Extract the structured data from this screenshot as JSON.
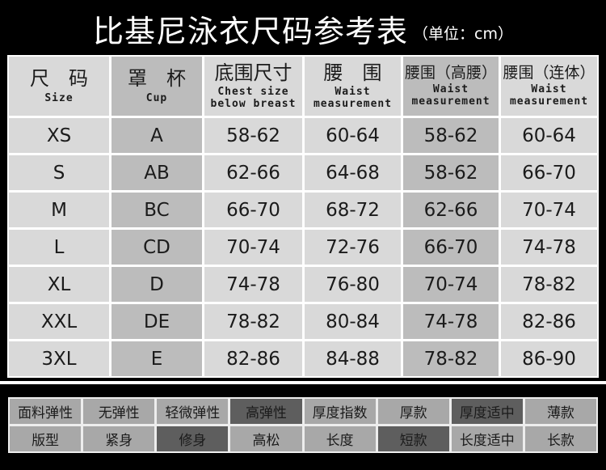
{
  "title": {
    "text": "比基尼泳衣尺码参考表",
    "unit": "（单位：cm）"
  },
  "chart_data": {
    "type": "table",
    "title": "比基尼泳衣尺码参考表",
    "unit": "cm",
    "columns": [
      {
        "zh": "尺　码",
        "en": "Size"
      },
      {
        "zh": "罩　杯",
        "en": "Cup"
      },
      {
        "zh": "底围尺寸",
        "en": "Chest size below breast"
      },
      {
        "zh": "腰　围",
        "en": "Waist measurement"
      },
      {
        "zh": "腰围（高腰）",
        "en": "Waist measurement"
      },
      {
        "zh": "腰围（连体）",
        "en": "Waist measurement"
      }
    ],
    "rows": [
      [
        "XS",
        "A",
        "58-62",
        "60-64",
        "58-62",
        "60-64"
      ],
      [
        "S",
        "AB",
        "62-66",
        "64-68",
        "58-62",
        "66-70"
      ],
      [
        "M",
        "BC",
        "66-70",
        "68-72",
        "62-66",
        "70-74"
      ],
      [
        "L",
        "CD",
        "70-74",
        "72-76",
        "66-70",
        "74-78"
      ],
      [
        "XL",
        "D",
        "74-78",
        "76-80",
        "70-74",
        "78-82"
      ],
      [
        "XXL",
        "DE",
        "78-82",
        "80-84",
        "74-78",
        "82-86"
      ],
      [
        "3XL",
        "E",
        "82-86",
        "84-88",
        "78-82",
        "86-90"
      ]
    ],
    "dark_columns": [
      1,
      4
    ]
  },
  "attributes": {
    "rows": [
      [
        {
          "label": "面料弹性",
          "highlight": false
        },
        {
          "label": "无弹性",
          "highlight": false
        },
        {
          "label": "轻微弹性",
          "highlight": false
        },
        {
          "label": "高弹性",
          "highlight": true
        },
        {
          "label": "厚度指数",
          "highlight": false
        },
        {
          "label": "厚款",
          "highlight": false
        },
        {
          "label": "厚度适中",
          "highlight": true
        },
        {
          "label": "薄款",
          "highlight": false
        }
      ],
      [
        {
          "label": "版型",
          "highlight": false
        },
        {
          "label": "紧身",
          "highlight": false
        },
        {
          "label": "修身",
          "highlight": true
        },
        {
          "label": "高松",
          "highlight": false
        },
        {
          "label": "长度",
          "highlight": false
        },
        {
          "label": "短款",
          "highlight": true
        },
        {
          "label": "长度适中",
          "highlight": false
        },
        {
          "label": "长款",
          "highlight": false
        }
      ]
    ]
  },
  "colors": {
    "background": "#000000",
    "cell_light": "#d9d9d9",
    "cell_dark": "#bcbcbc",
    "attr_cell": "#a8a8a8",
    "attr_highlight": "#5e5e5e",
    "text": "#1b1b1b",
    "title_text": "#ffffff"
  }
}
